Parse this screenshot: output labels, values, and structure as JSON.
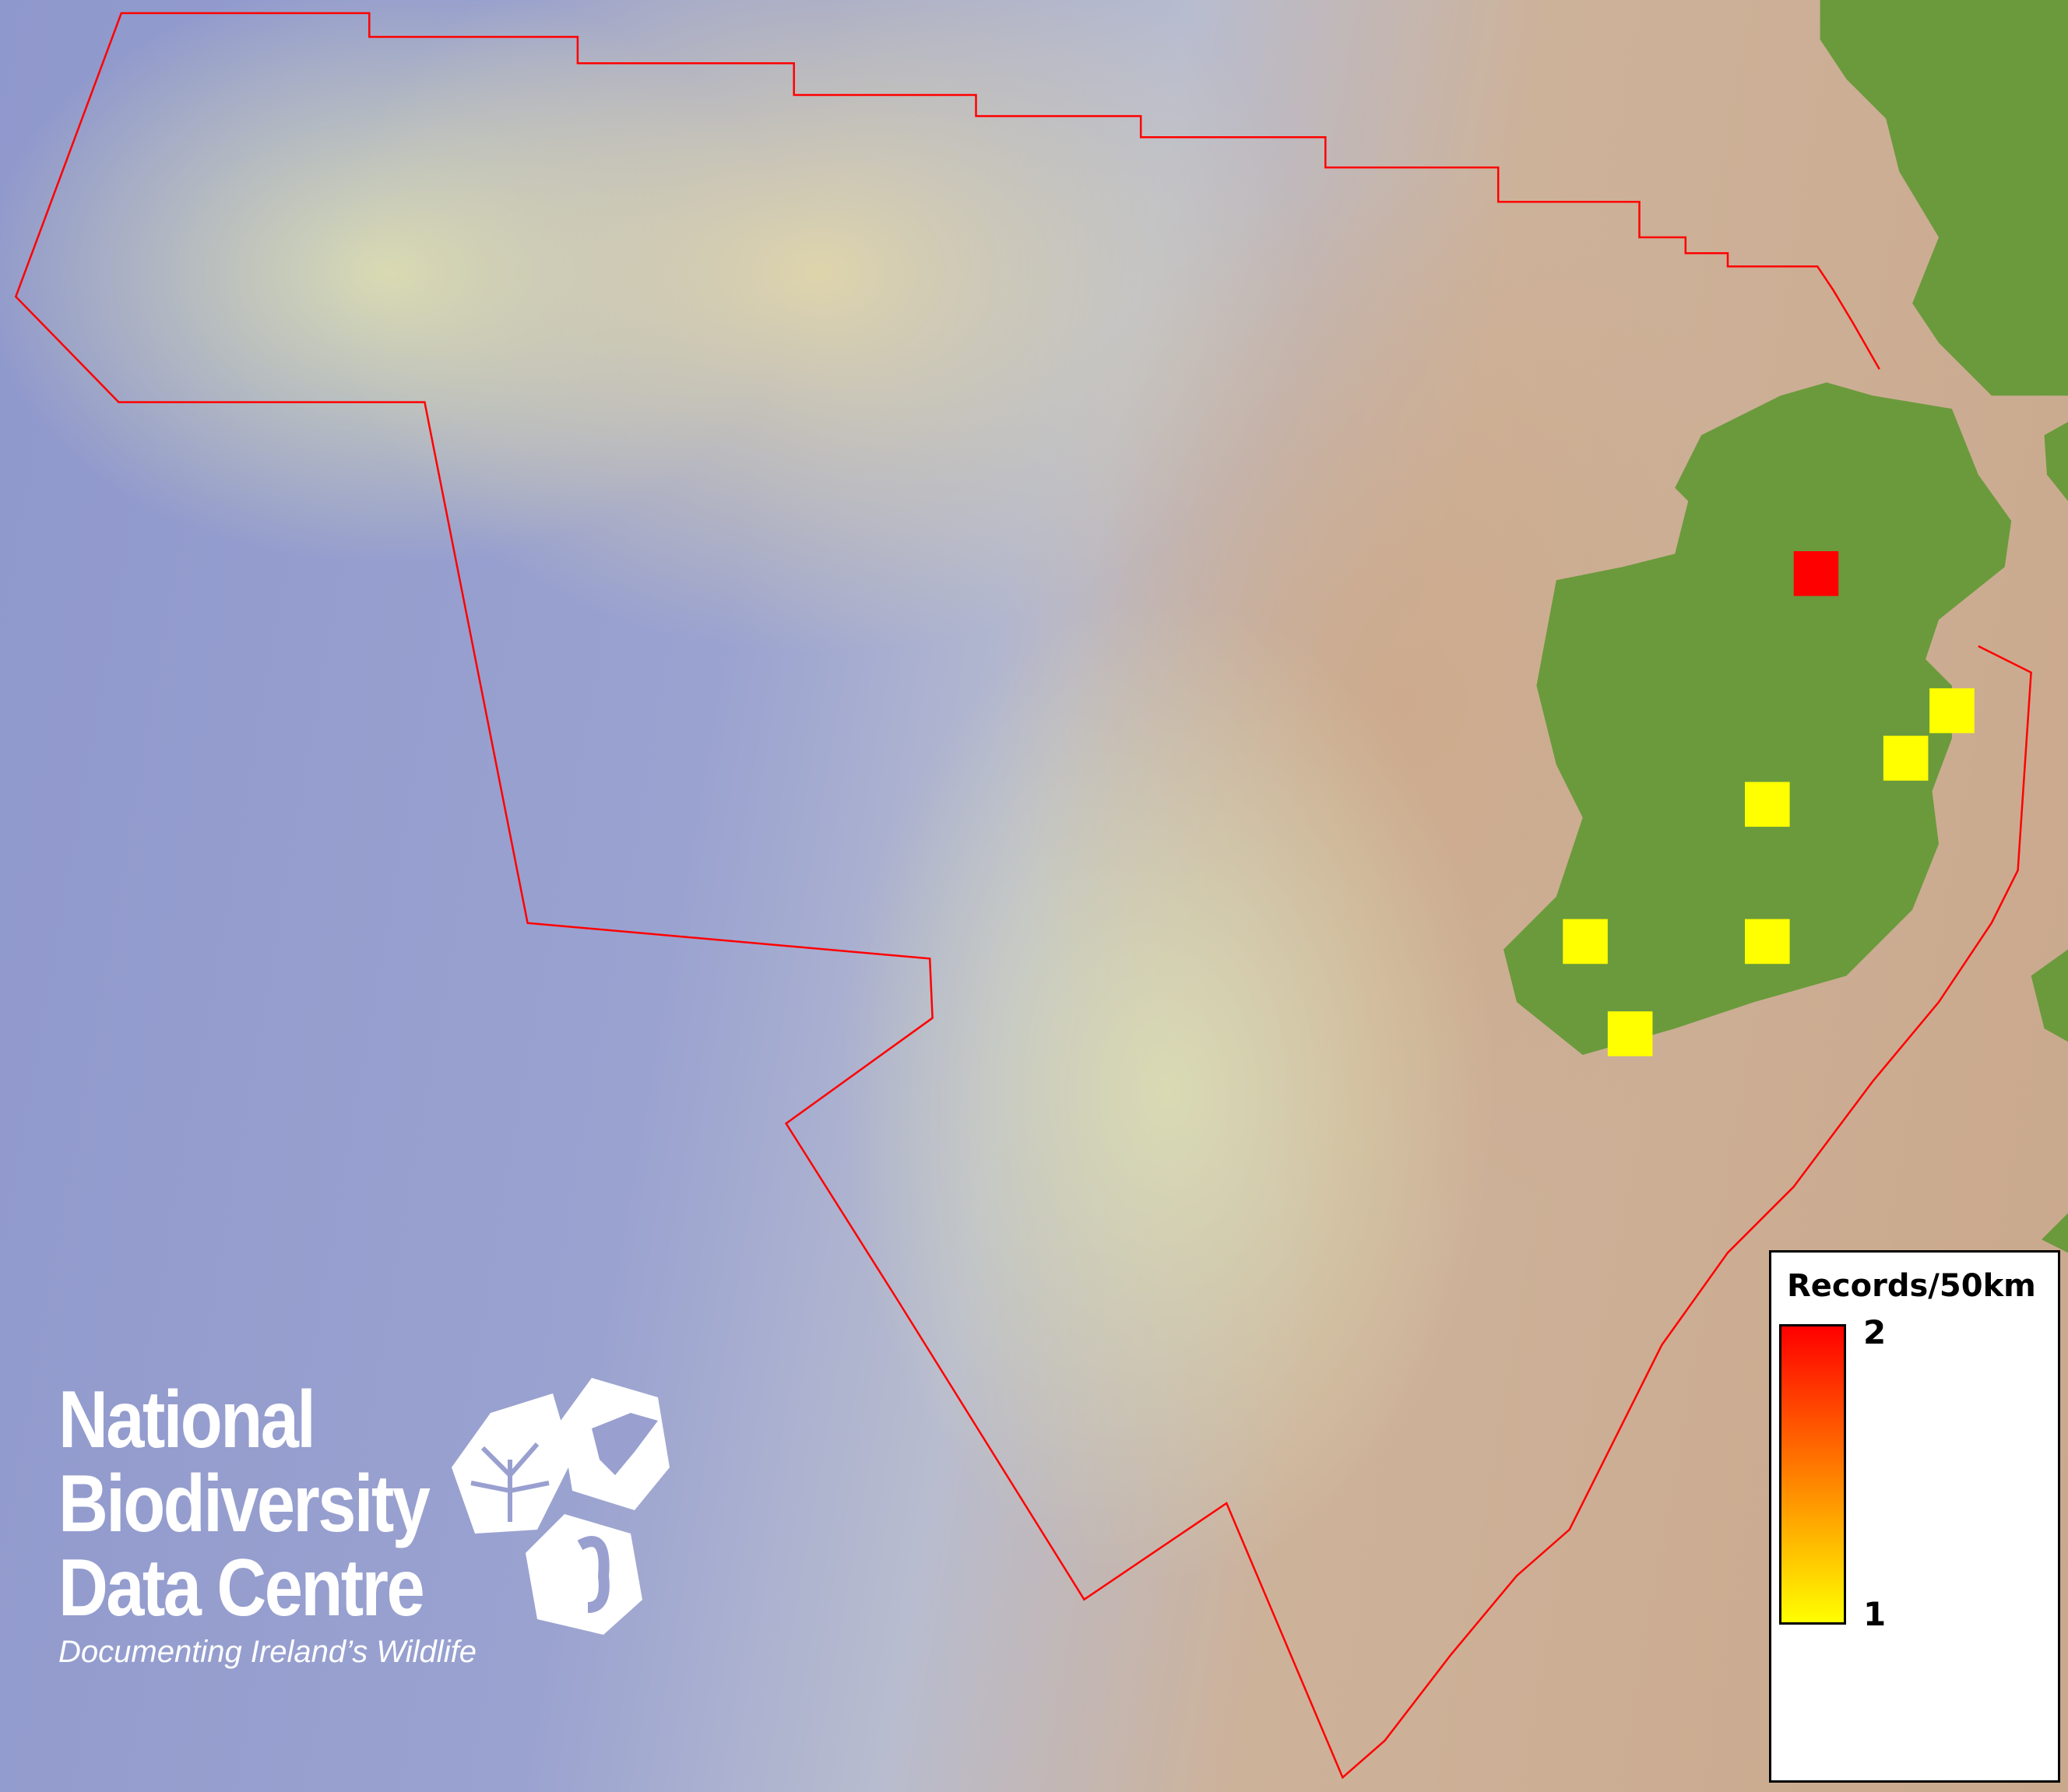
{
  "map": {
    "colors": {
      "land": "#6b9a3c",
      "boundary": "#ff0000",
      "deep_sea": "#8f98cc",
      "shelf": "#e2d7aa",
      "background_land": "#caa88c"
    },
    "grid_cells": [
      {
        "records": 2,
        "color": "#ff0000"
      },
      {
        "records": 1,
        "color": "#ffff00"
      },
      {
        "records": 1,
        "color": "#ffff00"
      },
      {
        "records": 1,
        "color": "#ffff00"
      },
      {
        "records": 1,
        "color": "#ffff00"
      },
      {
        "records": 1,
        "color": "#ffff00"
      },
      {
        "records": 1,
        "color": "#ffff00"
      }
    ]
  },
  "legend": {
    "title": "Records/50km",
    "max_label": "2",
    "min_label": "1",
    "gradient": [
      "#ff0000",
      "#ff7f00",
      "#ffff00"
    ]
  },
  "logo": {
    "line1": "National",
    "line2": "Biodiversity",
    "line3": "Data Centre",
    "tagline": "Documenting Ireland’s Wildlife"
  }
}
